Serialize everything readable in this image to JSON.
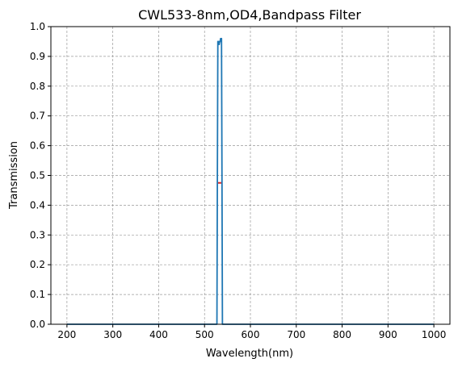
{
  "chart_data": {
    "type": "line",
    "title": "CWL533-8nm,OD4,Bandpass Filter",
    "xlabel": "Wavelength(nm)",
    "ylabel": "Transmission",
    "xlim": [
      165,
      1035
    ],
    "ylim": [
      0,
      1.0
    ],
    "xticks": [
      200,
      300,
      400,
      500,
      600,
      700,
      800,
      900,
      1000
    ],
    "yticks": [
      0.0,
      0.1,
      0.2,
      0.3,
      0.4,
      0.5,
      0.6,
      0.7,
      0.8,
      0.9,
      1.0
    ],
    "grid": true,
    "grid_style": "dashed",
    "series": [
      {
        "color": "#1f77b4",
        "x": [
          200,
          520,
          527,
          528,
          529,
          530,
          531,
          532,
          533,
          534,
          535,
          536,
          537,
          538,
          539,
          546,
          1000
        ],
        "y": [
          0.0,
          0.0,
          0.0,
          0.5,
          0.95,
          0.94,
          0.95,
          0.94,
          0.95,
          0.95,
          0.96,
          0.95,
          0.96,
          0.5,
          0.0,
          0.0,
          0.0
        ]
      }
    ],
    "marker": {
      "color": "#d62728",
      "x": 533,
      "y": 0.475
    }
  }
}
